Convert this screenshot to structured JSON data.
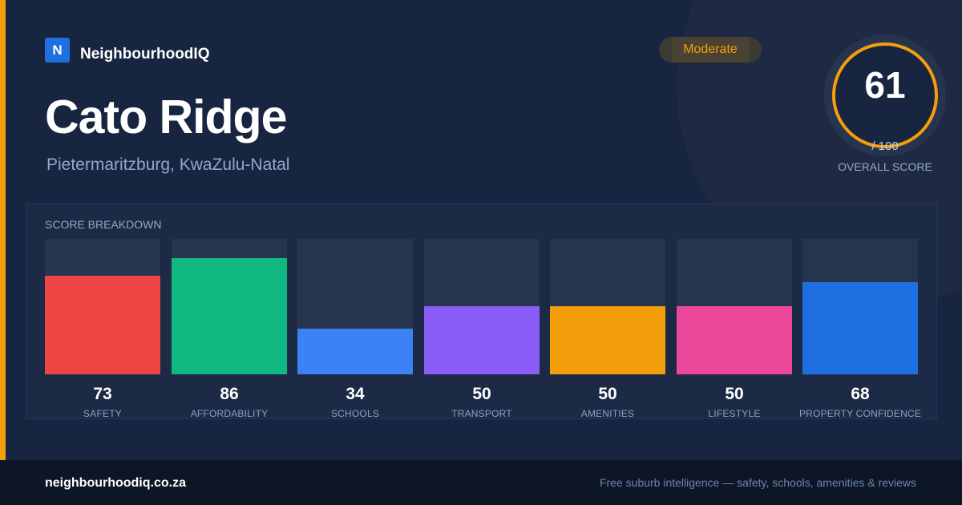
{
  "brand": {
    "logo_letter": "N",
    "name": "NeighbourhoodIQ"
  },
  "suburb": {
    "name": "Cato Ridge",
    "location": "Pietermaritzburg, KwaZulu-Natal"
  },
  "rating": {
    "label": "Moderate",
    "color": "#f59e0b"
  },
  "overall": {
    "score": "61",
    "max": "/ 100",
    "caption": "OVERALL SCORE",
    "ring_color": "#f59e0b"
  },
  "breakdown": {
    "title": "SCORE BREAKDOWN",
    "max": 100,
    "metrics": [
      {
        "label": "SAFETY",
        "value": 73,
        "color": "#ef4444"
      },
      {
        "label": "AFFORDABILITY",
        "value": 86,
        "color": "#10b981"
      },
      {
        "label": "SCHOOLS",
        "value": 34,
        "color": "#3b82f6"
      },
      {
        "label": "TRANSPORT",
        "value": 50,
        "color": "#8b5cf6"
      },
      {
        "label": "AMENITIES",
        "value": 50,
        "color": "#f59e0b"
      },
      {
        "label": "LIFESTYLE",
        "value": 50,
        "color": "#ec4899"
      },
      {
        "label": "PROPERTY CONFIDENCE",
        "value": 68,
        "color": "#1e6fe0"
      }
    ]
  },
  "footer": {
    "domain": "neighbourhoodiq.co.za",
    "tagline": "Free suburb intelligence — safety, schools, amenities & reviews"
  }
}
